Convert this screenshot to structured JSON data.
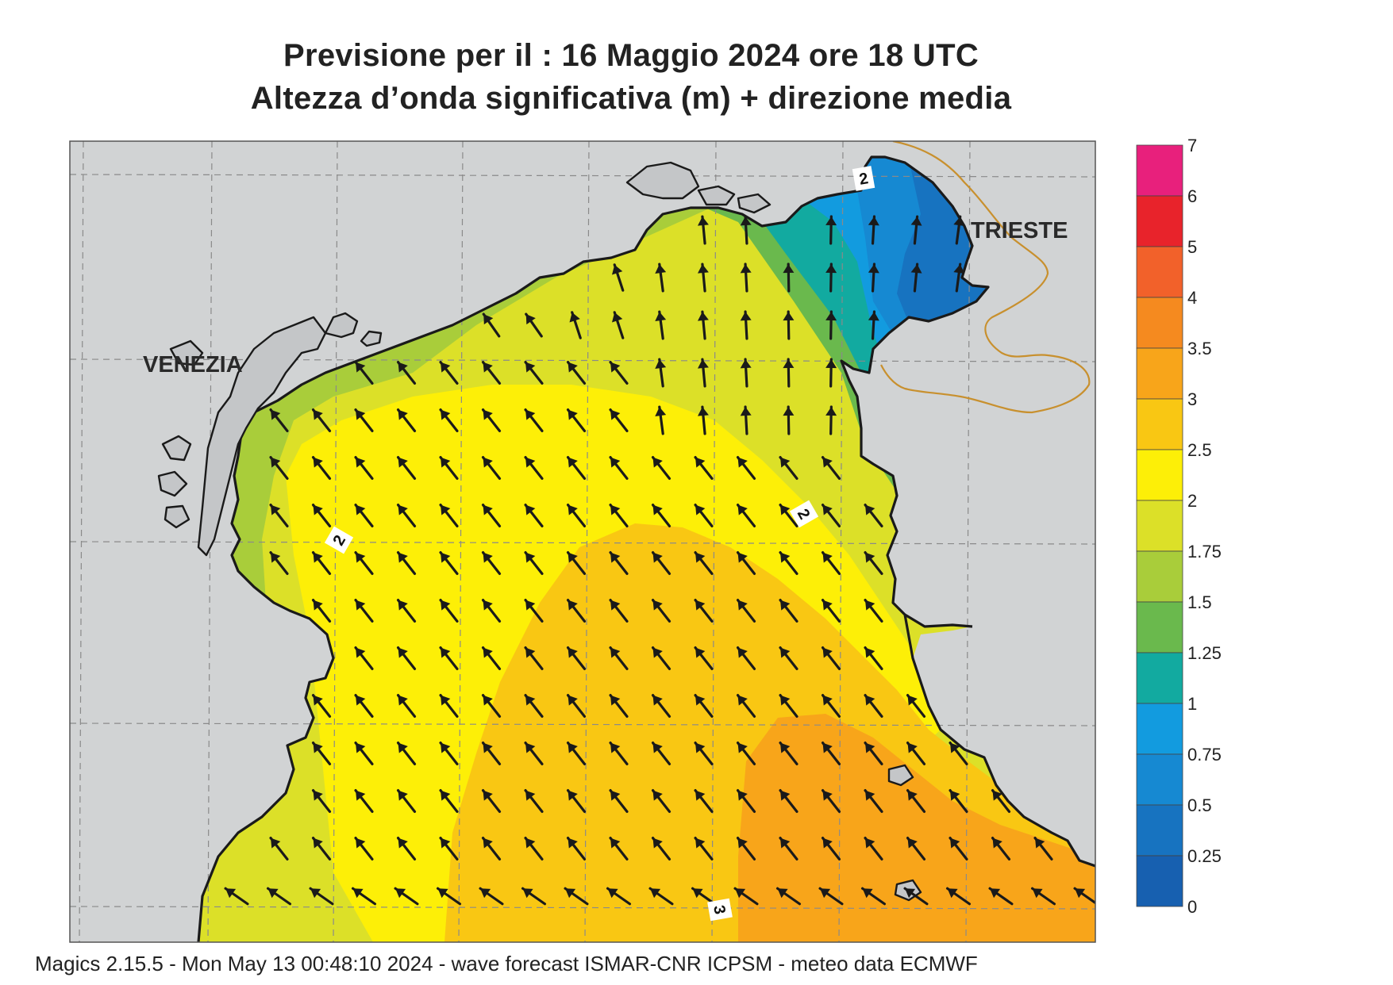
{
  "title": {
    "line1": "Previsione per il  :  16   Maggio  2024   ore 18 UTC",
    "line2": "Altezza d’onda significativa (m) + direzione media"
  },
  "places": [
    "VENEZIA",
    "TRIESTE"
  ],
  "contour_labels": [
    "2",
    "2",
    "2",
    "3"
  ],
  "colorbar": {
    "ticks": [
      "7",
      "6",
      "5",
      "4",
      "3.5",
      "3",
      "2.5",
      "2",
      "1.75",
      "1.5",
      "1.25",
      "1",
      "0.75",
      "0.5",
      "0.25",
      "0"
    ],
    "colors": [
      "#e8207c",
      "#e8232b",
      "#f2612a",
      "#f58a1f",
      "#f8a51a",
      "#f9c713",
      "#fdef07",
      "#dce028",
      "#a9cd3a",
      "#6ab94d",
      "#12aaa0",
      "#129bdf",
      "#1689d2",
      "#1773c0",
      "#1760b0"
    ]
  },
  "legend_colors": {
    "land": "#d1d3d4",
    "coast": "#1a1a1a",
    "border": "#c8902e",
    "arrow": "#1a1a1a"
  },
  "wave_direction": "towards NNW (from SSE)",
  "footer": "Magics 2.15.5 - Mon May 13 00:48:10 2024 - wave forecast  ISMAR-CNR  ICPSM - meteo data   ECMWF"
}
